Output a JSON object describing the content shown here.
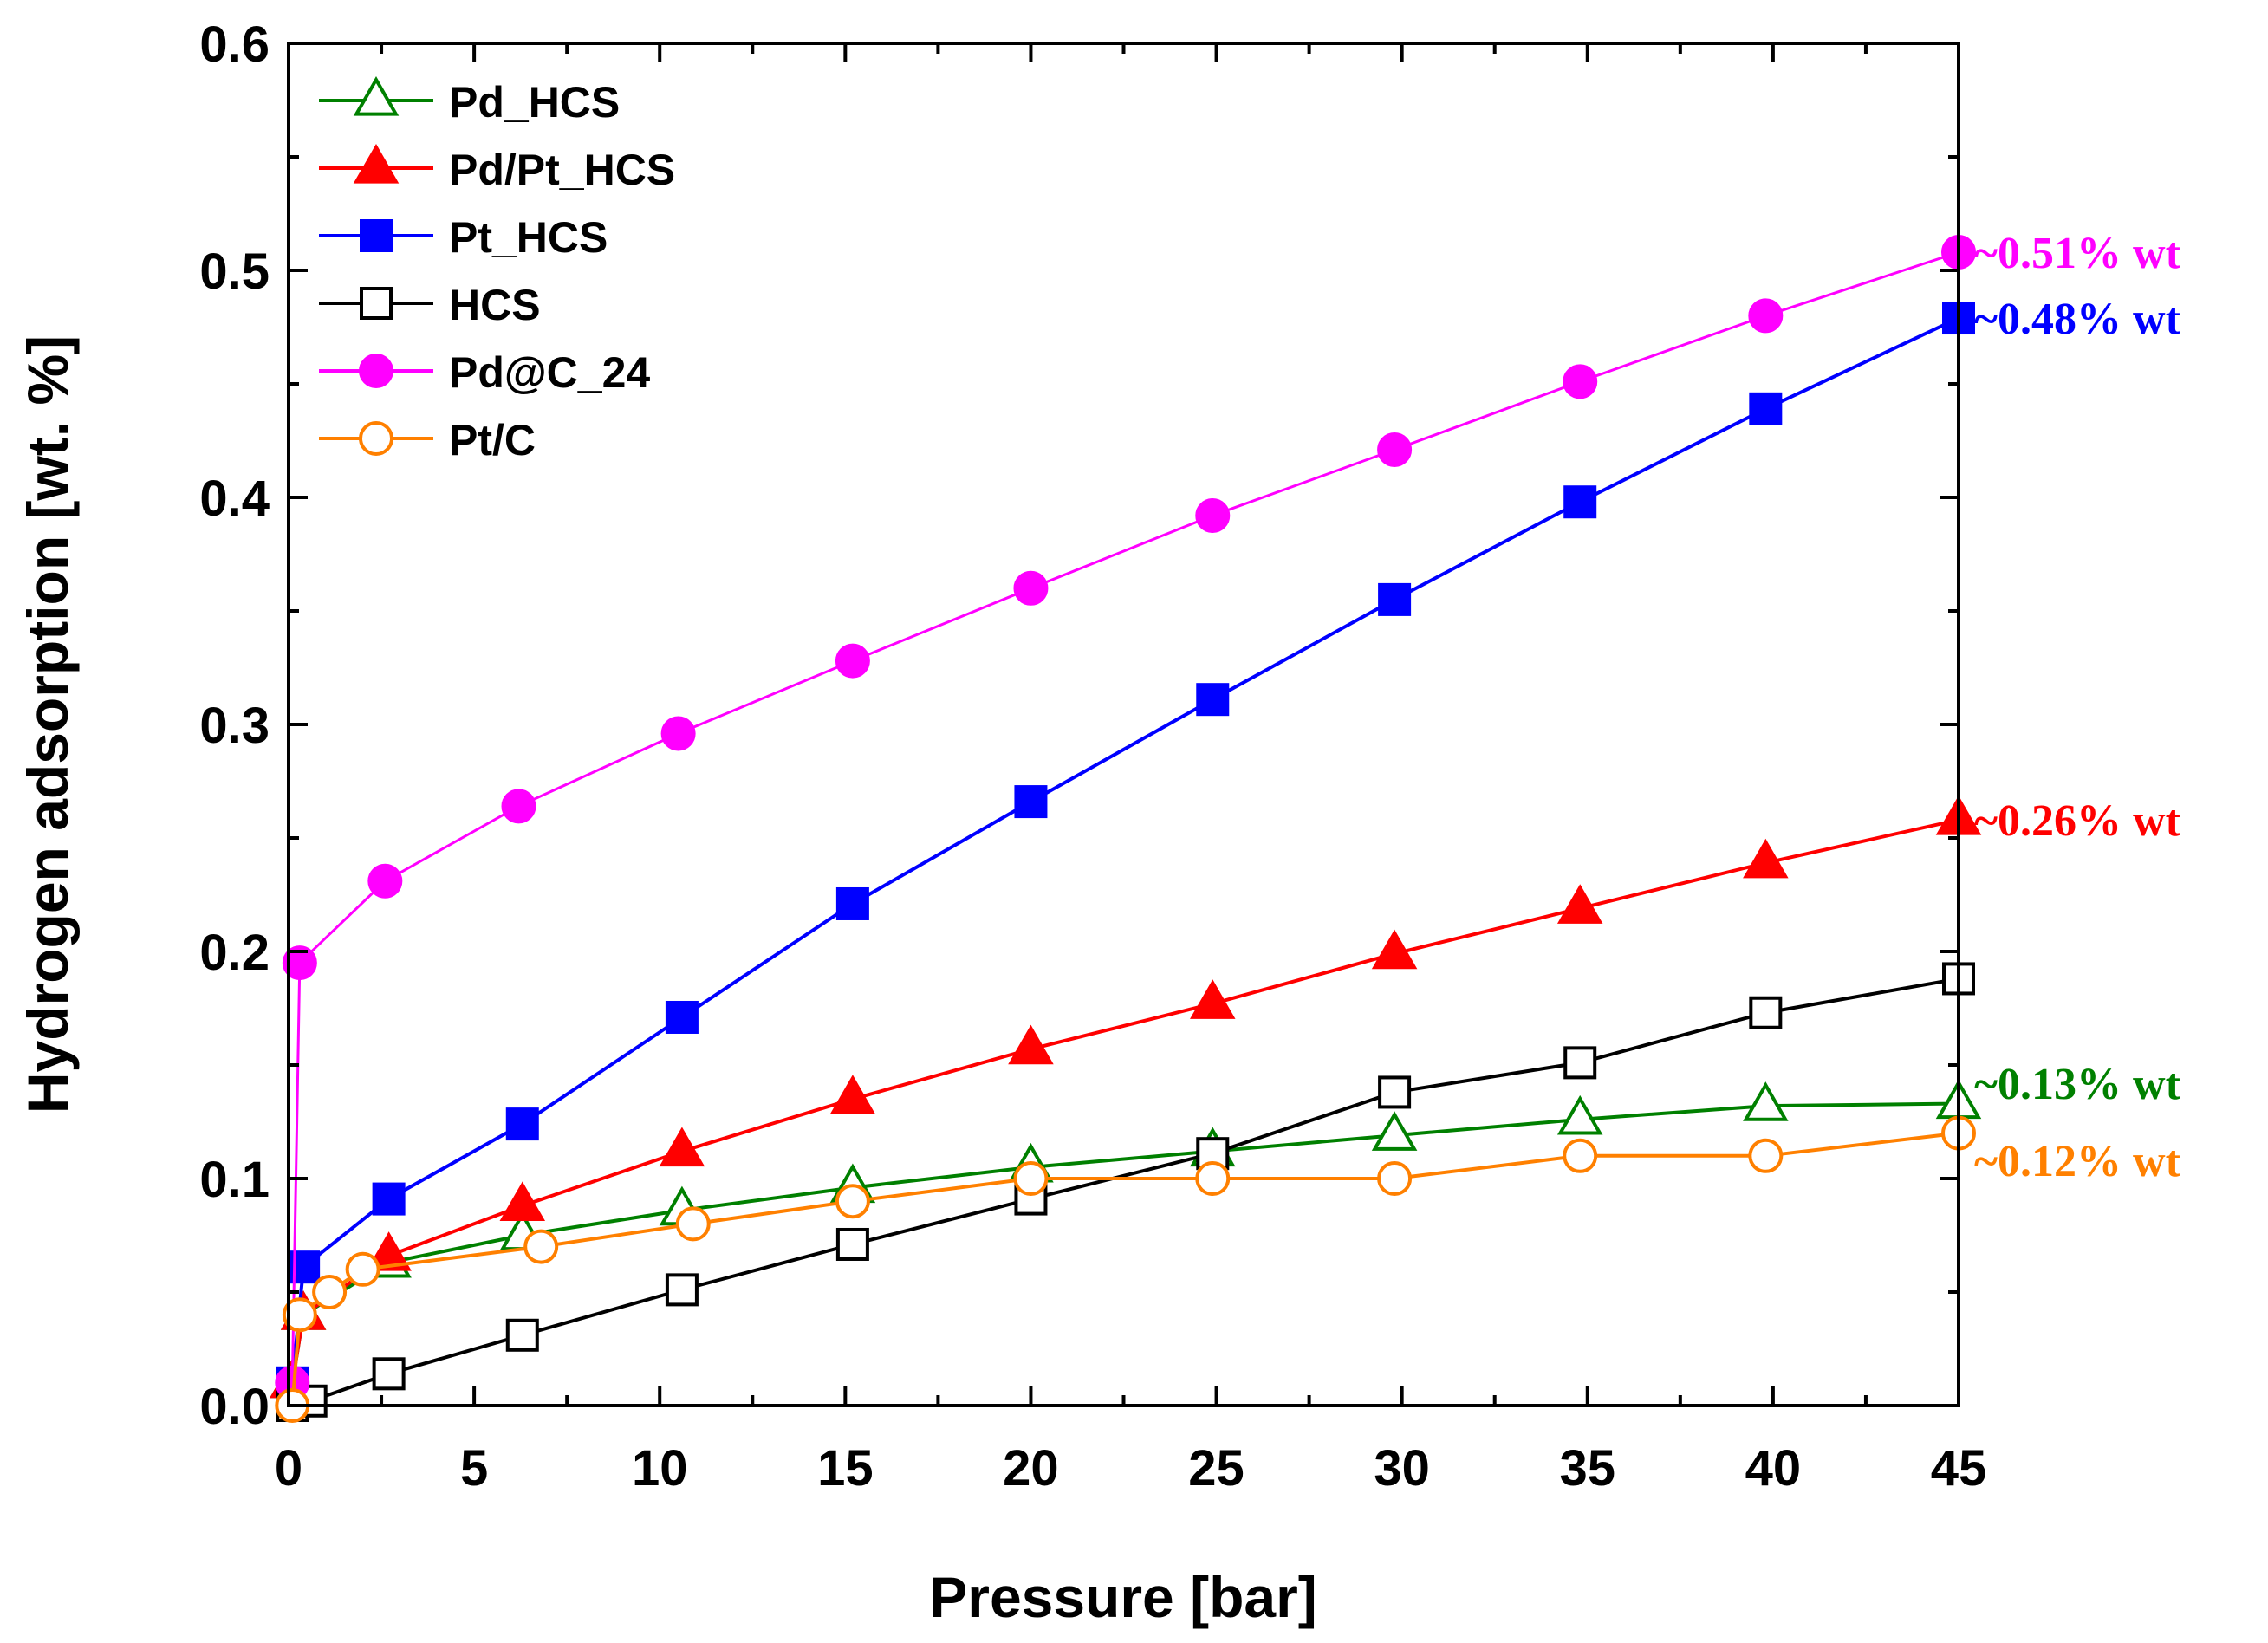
{
  "chart_data": {
    "type": "line",
    "xlabel": "Pressure [bar]",
    "ylabel": "Hydrogen adsorption [wt. %]",
    "xlim": [
      0,
      45
    ],
    "ylim": [
      0.0,
      0.6
    ],
    "x_ticks": [
      "0",
      "5",
      "10",
      "15",
      "20",
      "25",
      "30",
      "35",
      "40",
      "45"
    ],
    "y_ticks": [
      "0.0",
      "0.1",
      "0.2",
      "0.3",
      "0.4",
      "0.5",
      "0.6"
    ],
    "grid": false,
    "legend_position": "top-left",
    "series": [
      {
        "name": "Pd_HCS",
        "color": "#008000",
        "marker": "triangle-open",
        "x": [
          0.1,
          0.4,
          2.7,
          6.3,
          10.6,
          15.2,
          20.0,
          24.9,
          29.8,
          34.8,
          39.8,
          45.0
        ],
        "y": [
          0.01,
          0.04,
          0.063,
          0.075,
          0.086,
          0.096,
          0.105,
          0.112,
          0.119,
          0.126,
          0.132,
          0.133
        ]
      },
      {
        "name": "Pd/Pt_HCS",
        "color": "#ff0000",
        "marker": "triangle-filled",
        "x": [
          0.1,
          0.4,
          2.7,
          6.3,
          10.6,
          15.2,
          20.0,
          24.9,
          29.8,
          34.8,
          39.8,
          45.0
        ],
        "y": [
          0.01,
          0.04,
          0.066,
          0.088,
          0.112,
          0.135,
          0.157,
          0.177,
          0.199,
          0.219,
          0.239,
          0.258
        ]
      },
      {
        "name": "Pt_HCS",
        "color": "#0000ff",
        "marker": "square-filled",
        "x": [
          0.1,
          0.4,
          2.7,
          6.3,
          10.6,
          15.2,
          20.0,
          24.9,
          29.8,
          34.8,
          39.8,
          45.0
        ],
        "y": [
          0.01,
          0.061,
          0.091,
          0.124,
          0.171,
          0.221,
          0.266,
          0.311,
          0.355,
          0.398,
          0.439,
          0.479
        ]
      },
      {
        "name": "HCS",
        "color": "#000000",
        "marker": "square-open",
        "x": [
          0.1,
          0.6,
          2.7,
          6.3,
          10.6,
          15.2,
          20.0,
          24.9,
          29.8,
          34.8,
          39.8,
          45.0
        ],
        "y": [
          0.0,
          0.002,
          0.014,
          0.031,
          0.051,
          0.071,
          0.091,
          0.111,
          0.138,
          0.151,
          0.173,
          0.188
        ]
      },
      {
        "name": "Pd@C_24",
        "color": "#ff00ff",
        "marker": "circle-filled",
        "x": [
          0.1,
          0.3,
          2.6,
          6.2,
          10.5,
          15.2,
          20.0,
          24.9,
          29.8,
          34.8,
          39.8,
          45.0
        ],
        "y": [
          0.01,
          0.195,
          0.231,
          0.264,
          0.296,
          0.328,
          0.36,
          0.392,
          0.421,
          0.451,
          0.48,
          0.508
        ]
      },
      {
        "name": "Pt/C",
        "color": "#ff8000",
        "marker": "circle-open",
        "x": [
          0.1,
          0.3,
          1.1,
          2.0,
          6.8,
          10.9,
          15.2,
          20.0,
          24.9,
          29.8,
          34.8,
          39.8,
          45.0
        ],
        "y": [
          0.0,
          0.04,
          0.05,
          0.06,
          0.07,
          0.08,
          0.09,
          0.1,
          0.1,
          0.1,
          0.11,
          0.11,
          0.12
        ]
      }
    ],
    "annotations": [
      {
        "text": "~0.51% wt",
        "color": "#ff00ff",
        "x": 45.0,
        "y": 0.508
      },
      {
        "text": "~0.48% wt",
        "color": "#0000ff",
        "x": 45.0,
        "y": 0.479
      },
      {
        "text": "~0.26% wt",
        "color": "#ff0000",
        "x": 45.0,
        "y": 0.258
      },
      {
        "text": "~0.13% wt",
        "color": "#008000",
        "x": 45.0,
        "y": 0.142
      },
      {
        "text": "~0.12% wt",
        "color": "#ff8000",
        "x": 45.0,
        "y": 0.108
      }
    ]
  }
}
